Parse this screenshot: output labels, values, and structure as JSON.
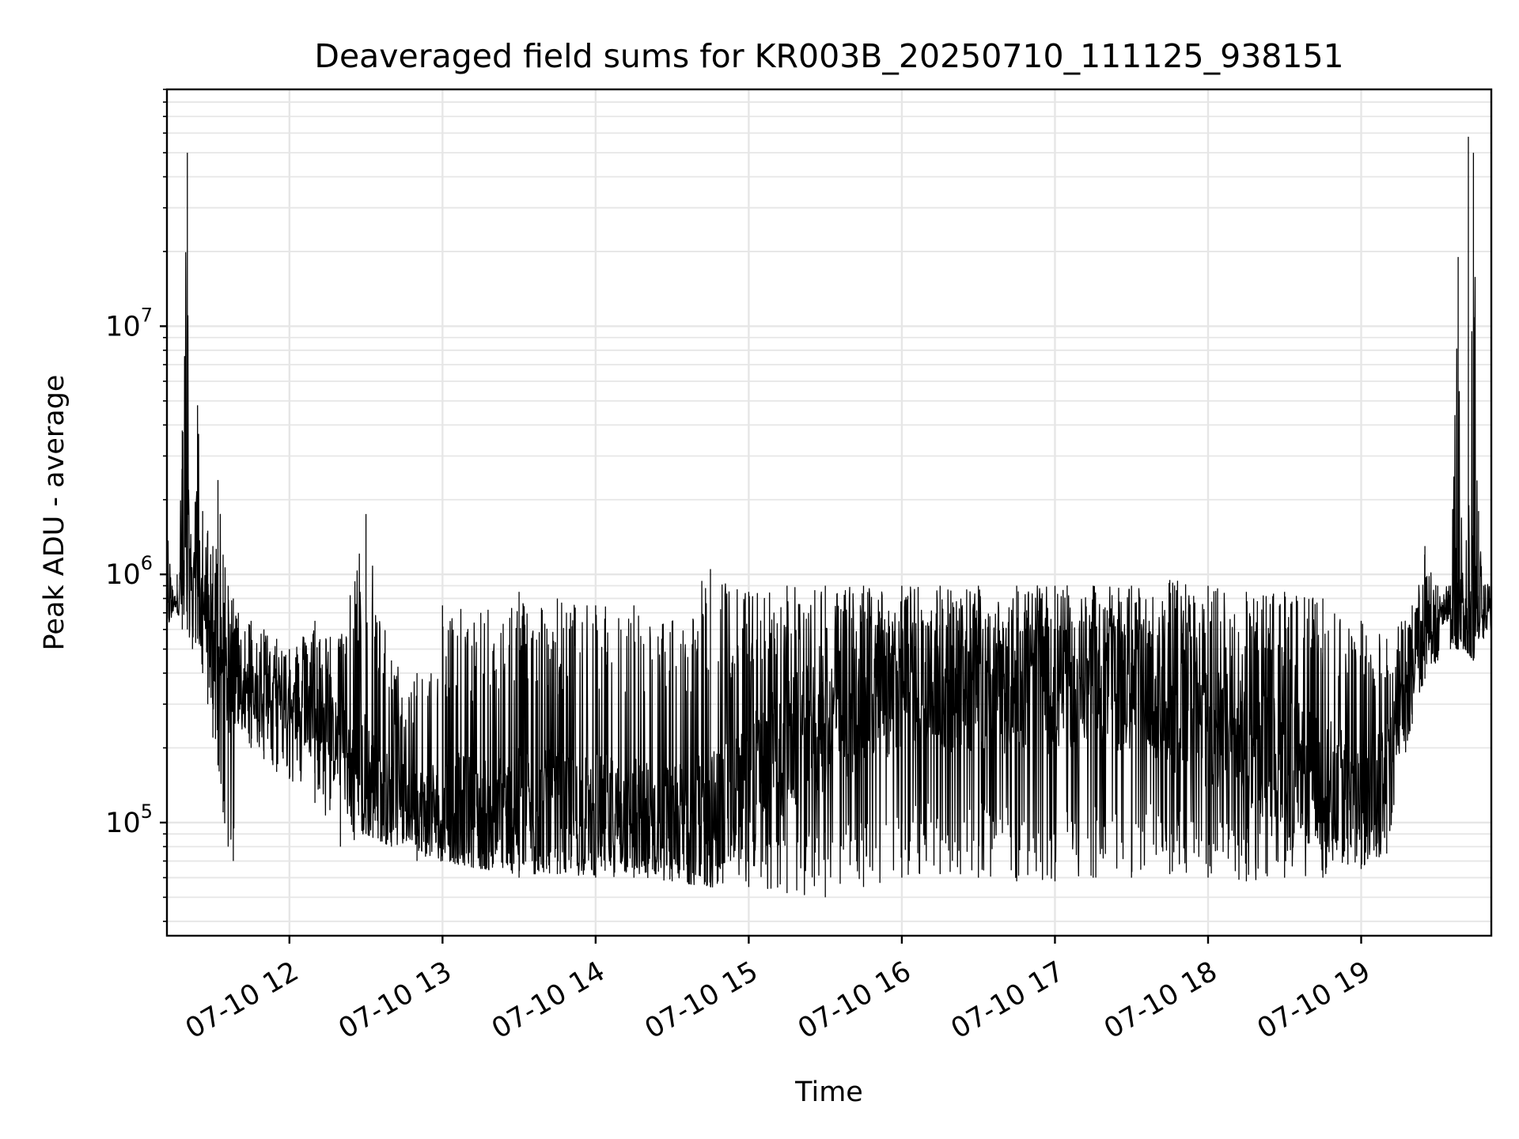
{
  "chart_data": {
    "type": "line",
    "title": "Deaveraged field sums for KR003B_20250710_111125_938151",
    "xlabel": "Time",
    "ylabel": "Peak ADU - average",
    "y_scale": "log",
    "grid": "on (major and minor)",
    "legend": "none",
    "line_color": "#000000",
    "xlim": [
      "2025-07-10 11:12",
      "2025-07-10 19:51"
    ],
    "ylim": [
      35000,
      90000000
    ],
    "x_ticks": [
      {
        "value": "2025-07-10 12:00",
        "label": "07-10 12"
      },
      {
        "value": "2025-07-10 13:00",
        "label": "07-10 13"
      },
      {
        "value": "2025-07-10 14:00",
        "label": "07-10 14"
      },
      {
        "value": "2025-07-10 15:00",
        "label": "07-10 15"
      },
      {
        "value": "2025-07-10 16:00",
        "label": "07-10 16"
      },
      {
        "value": "2025-07-10 17:00",
        "label": "07-10 17"
      },
      {
        "value": "2025-07-10 18:00",
        "label": "07-10 18"
      },
      {
        "value": "2025-07-10 19:00",
        "label": "07-10 19"
      }
    ],
    "y_ticks": [
      {
        "value": 100000,
        "base": "10",
        "exp": "5"
      },
      {
        "value": 1000000,
        "base": "10",
        "exp": "6"
      },
      {
        "value": 10000000,
        "base": "10",
        "exp": "7"
      }
    ],
    "series": [
      {
        "x": [
          "2025-07-10 11:12",
          "2025-07-10 11:14",
          "2025-07-10 11:16",
          "2025-07-10 11:18",
          "2025-07-10 11:20",
          "2025-07-10 11:22",
          "2025-07-10 11:24",
          "2025-07-10 11:26",
          "2025-07-10 11:28",
          "2025-07-10 11:30",
          "2025-07-10 11:32",
          "2025-07-10 11:34",
          "2025-07-10 11:36",
          "2025-07-10 11:38",
          "2025-07-10 11:40",
          "2025-07-10 11:45",
          "2025-07-10 11:50",
          "2025-07-10 11:55",
          "2025-07-10 12:00",
          "2025-07-10 12:10",
          "2025-07-10 12:20",
          "2025-07-10 12:30",
          "2025-07-10 12:40",
          "2025-07-10 12:50",
          "2025-07-10 13:00",
          "2025-07-10 13:15",
          "2025-07-10 13:30",
          "2025-07-10 13:45",
          "2025-07-10 14:00",
          "2025-07-10 14:15",
          "2025-07-10 14:30",
          "2025-07-10 14:45",
          "2025-07-10 15:00",
          "2025-07-10 15:15",
          "2025-07-10 15:30",
          "2025-07-10 15:45",
          "2025-07-10 16:00",
          "2025-07-10 16:15",
          "2025-07-10 16:30",
          "2025-07-10 16:45",
          "2025-07-10 17:00",
          "2025-07-10 17:15",
          "2025-07-10 17:30",
          "2025-07-10 17:45",
          "2025-07-10 18:00",
          "2025-07-10 18:15",
          "2025-07-10 18:30",
          "2025-07-10 18:45",
          "2025-07-10 19:00",
          "2025-07-10 19:10",
          "2025-07-10 19:20",
          "2025-07-10 19:25",
          "2025-07-10 19:30",
          "2025-07-10 19:35",
          "2025-07-10 19:38",
          "2025-07-10 19:40",
          "2025-07-10 19:42",
          "2025-07-10 19:44",
          "2025-07-10 19:46",
          "2025-07-10 19:48",
          "2025-07-10 19:51"
        ],
        "upper": [
          1600000,
          900000,
          1000000,
          3800000,
          50000000,
          700000,
          4800000,
          1800000,
          1500000,
          1300000,
          2400000,
          1200000,
          900000,
          800000,
          700000,
          650000,
          600000,
          550000,
          500000,
          650000,
          550000,
          1750000,
          450000,
          400000,
          750000,
          700000,
          850000,
          800000,
          750000,
          750000,
          650000,
          1050000,
          850000,
          900000,
          900000,
          900000,
          900000,
          900000,
          900000,
          900000,
          900000,
          900000,
          900000,
          950000,
          900000,
          850000,
          850000,
          800000,
          650000,
          550000,
          750000,
          1300000,
          900000,
          900000,
          19000000,
          750000,
          58000000,
          50000000,
          1800000,
          900000,
          950000
        ],
        "lower": [
          450000,
          700000,
          700000,
          600000,
          600000,
          500000,
          550000,
          400000,
          300000,
          220000,
          170000,
          110000,
          80000,
          70000,
          250000,
          200000,
          180000,
          160000,
          150000,
          120000,
          80000,
          90000,
          80000,
          70000,
          70000,
          65000,
          60000,
          62000,
          60000,
          60000,
          58000,
          55000,
          55000,
          52000,
          50000,
          55000,
          60000,
          62000,
          60000,
          58000,
          58000,
          60000,
          60000,
          62000,
          60000,
          58000,
          60000,
          60000,
          65000,
          75000,
          250000,
          380000,
          450000,
          500000,
          500000,
          500000,
          480000,
          450000,
          550000,
          550000,
          600000
        ],
        "median": [
          700000,
          750000,
          800000,
          900000,
          1000000,
          1100000,
          1000000,
          800000,
          650000,
          500000,
          450000,
          400000,
          380000,
          360000,
          350000,
          340000,
          330000,
          320000,
          300000,
          260000,
          200000,
          150000,
          120000,
          115000,
          115000,
          110000,
          110000,
          110000,
          108000,
          105000,
          100000,
          100000,
          150000,
          200000,
          250000,
          300000,
          350000,
          350000,
          350000,
          350000,
          350000,
          350000,
          350000,
          300000,
          250000,
          200000,
          180000,
          150000,
          130000,
          180000,
          400000,
          600000,
          700000,
          750000,
          700000,
          700000,
          700000,
          700000,
          700000,
          700000,
          800000
        ]
      }
    ]
  }
}
